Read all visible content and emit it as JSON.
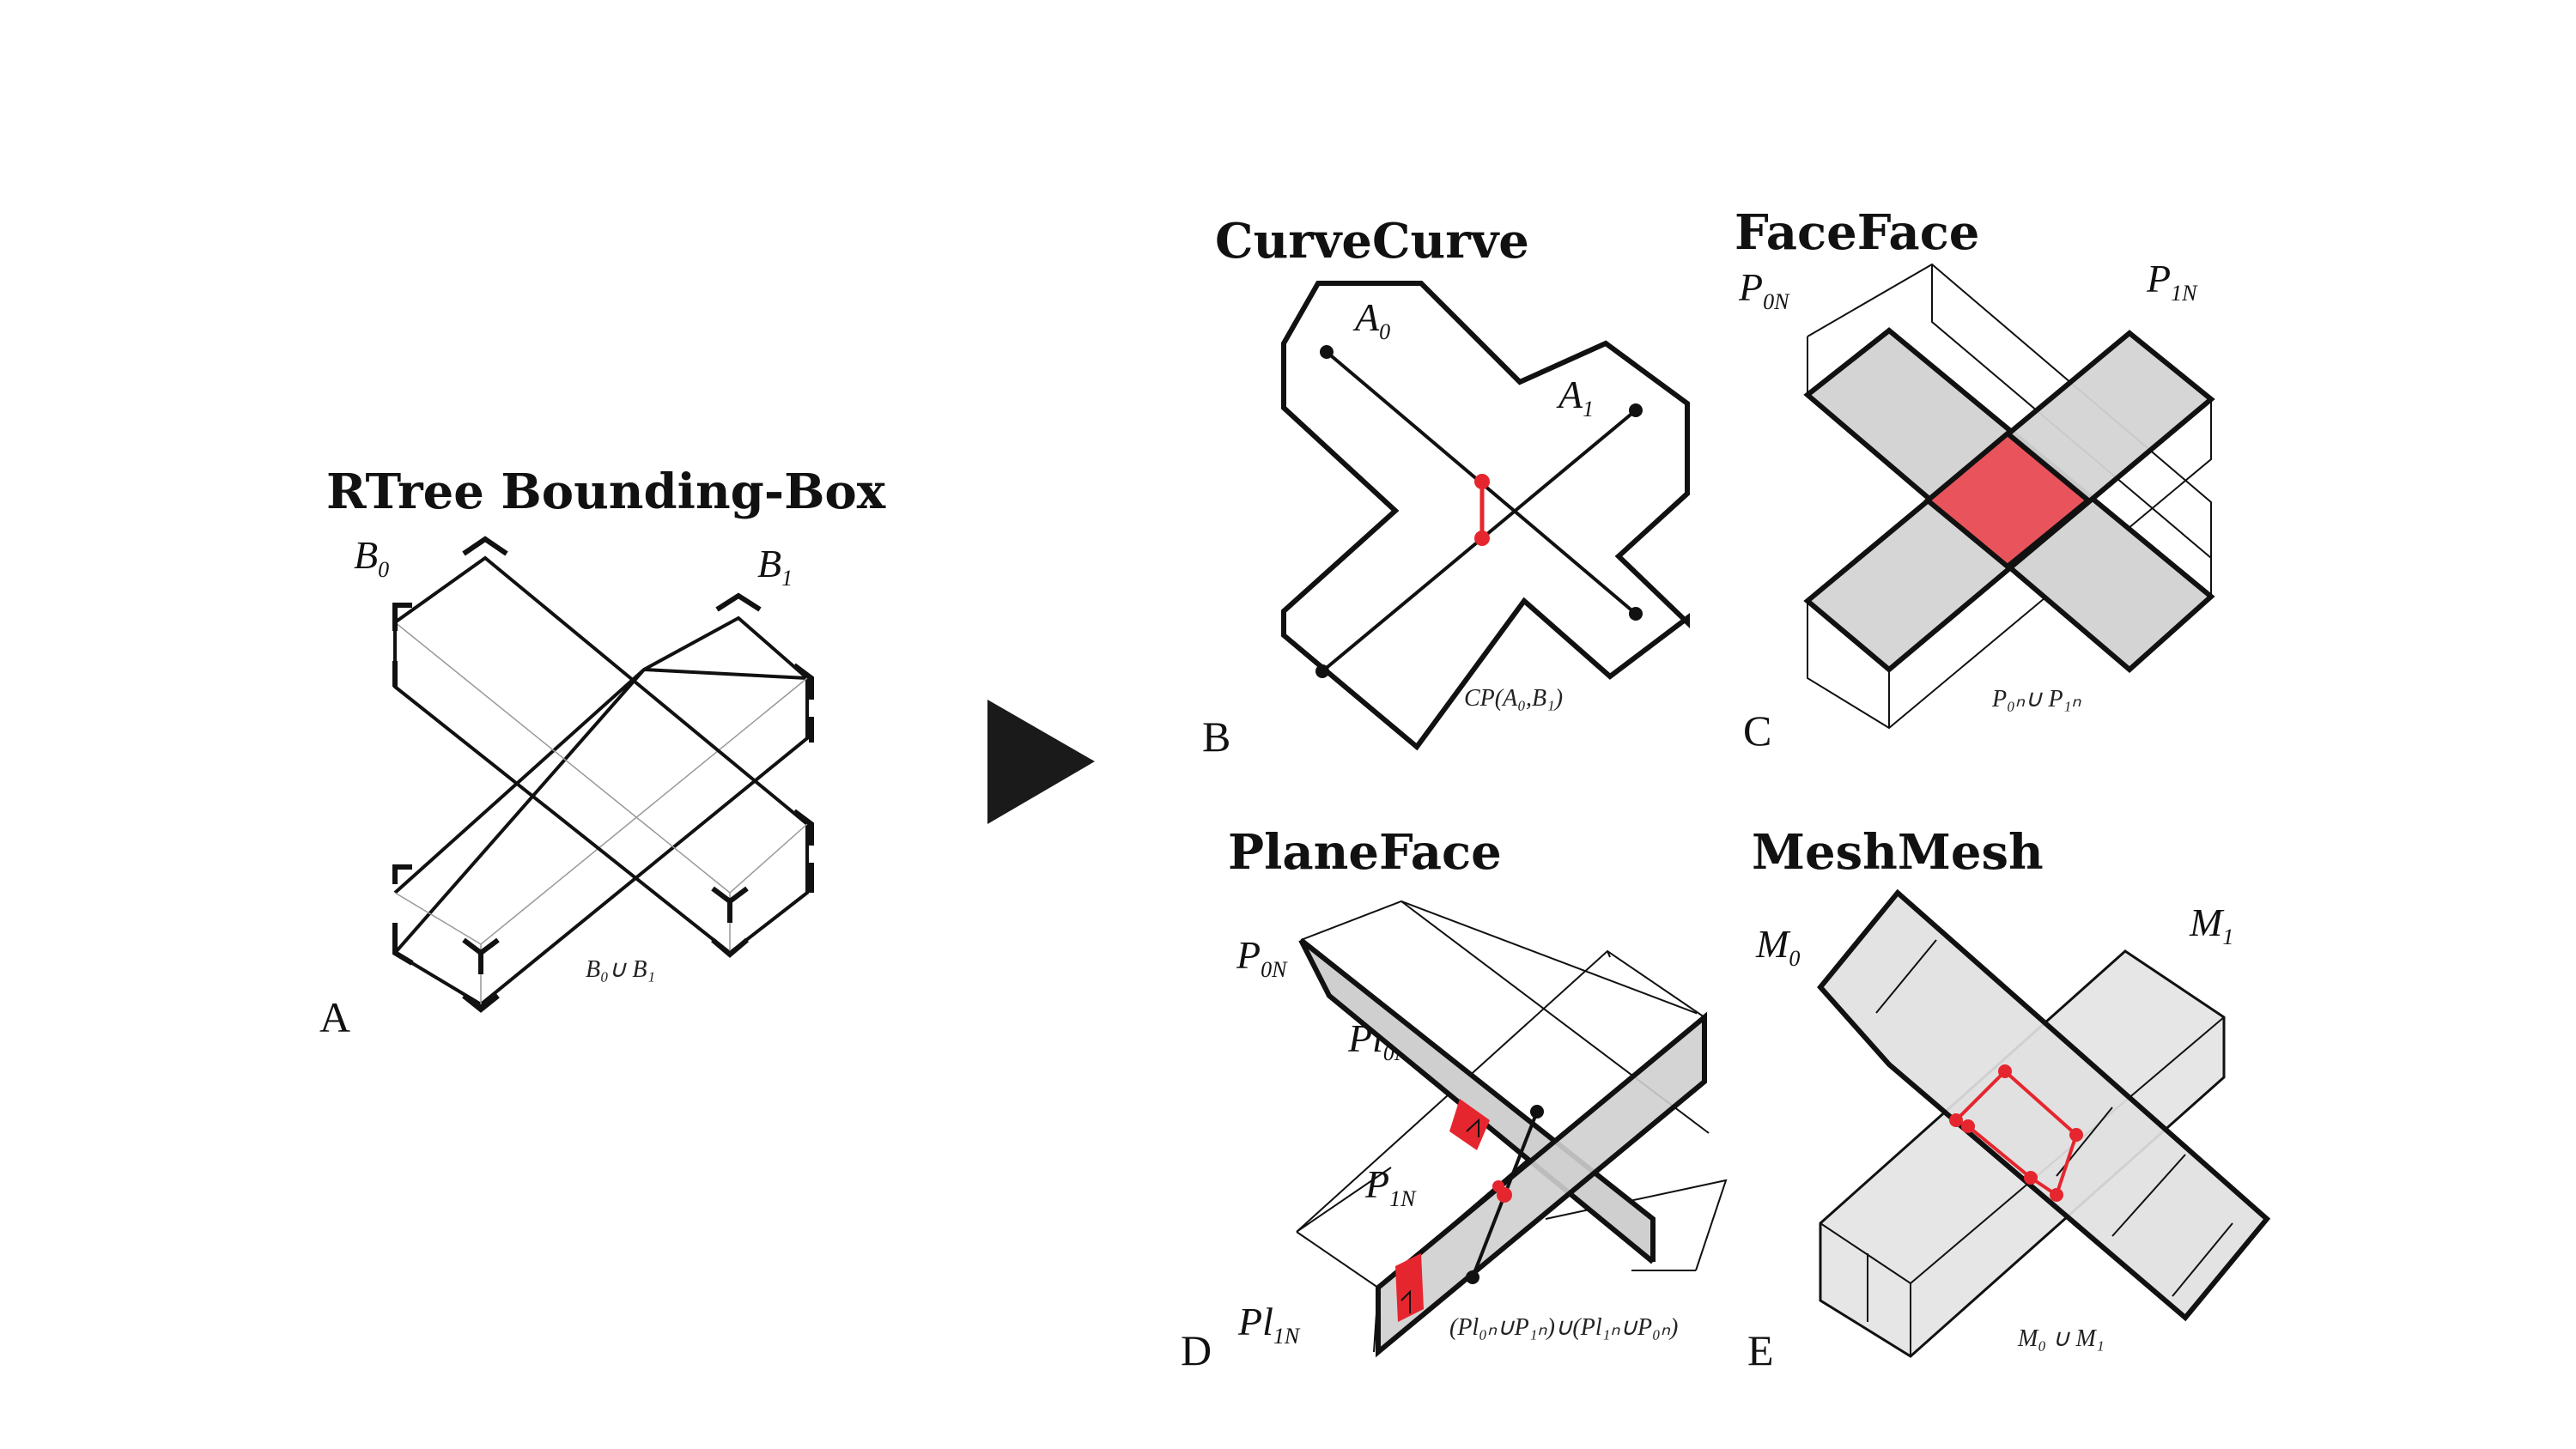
{
  "panels": {
    "A": {
      "title": "RTree Bounding-Box",
      "letter": "A",
      "label_b0": "B",
      "label_b0_sub": "0",
      "label_b1": "B",
      "label_b1_sub": "1",
      "union": "B₀∪ B₁"
    },
    "B": {
      "title": "CurveCurve",
      "letter": "B",
      "label_a0": "A",
      "label_a0_sub": "0",
      "label_a1": "A",
      "label_a1_sub": "1",
      "caption": "CP(A₀,B₁)"
    },
    "C": {
      "title": "FaceFace",
      "letter": "C",
      "label_p0": "P",
      "label_p0_sub": "0N",
      "label_p1": "P",
      "label_p1_sub": "1N",
      "caption": "P₀ₙ∪ P₁ₙ"
    },
    "D": {
      "title": "PlaneFace",
      "letter": "D",
      "label_p0": "P",
      "label_p0_sub": "0N",
      "label_pl0": "Pl",
      "label_pl0_sub": "0N",
      "label_p1": "P",
      "label_p1_sub": "1N",
      "label_pl1": "Pl",
      "label_pl1_sub": "1N",
      "caption": "(Pl₀ₙ∪P₁ₙ)∪(Pl₁ₙ∪P₀ₙ)"
    },
    "E": {
      "title": "MeshMesh",
      "letter": "E",
      "label_m0": "M",
      "label_m0_sub": "0",
      "label_m1": "M",
      "label_m1_sub": "1",
      "caption": "M₀ ∪ M₁"
    }
  },
  "arrow_icon": "play-triangle-icon",
  "colors": {
    "ink": "#111111",
    "highlight_red": "#e5262e",
    "highlight_fill": "#e9545c",
    "face_gray": "#d4d4d4",
    "mesh_gray": "#e6e6e6"
  }
}
